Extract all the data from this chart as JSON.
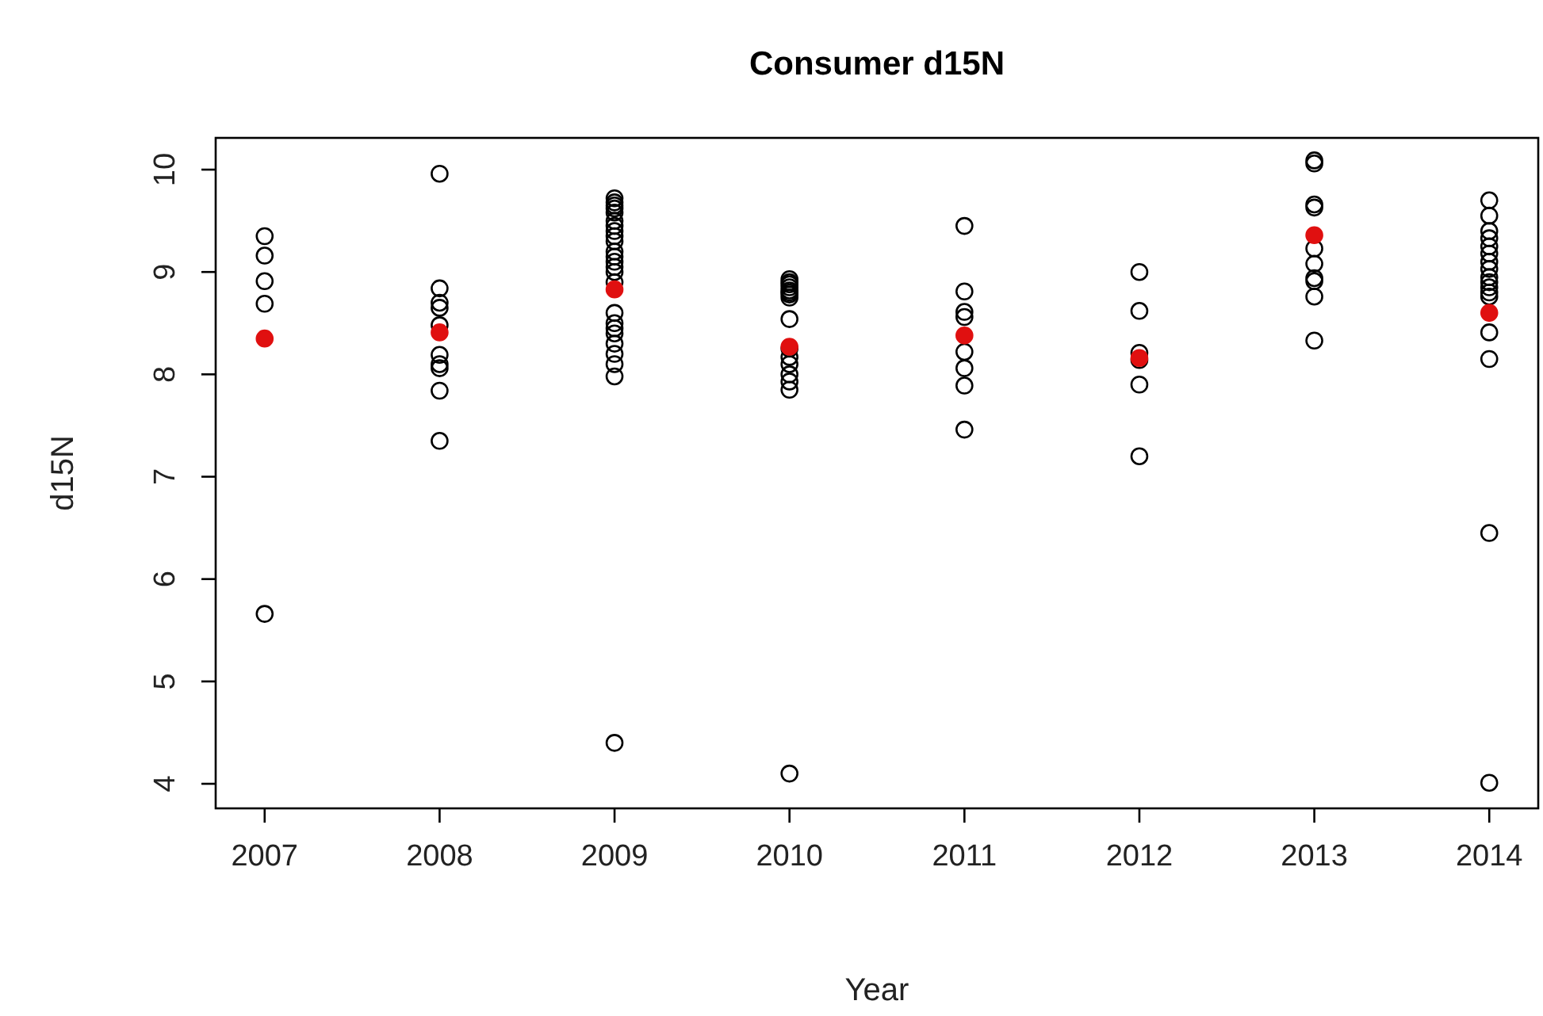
{
  "chart_data": {
    "type": "scatter",
    "title": "Consumer d15N",
    "xlabel": "Year",
    "ylabel": "d15N",
    "xlim": [
      2006.72,
      2014.28
    ],
    "xticks": [
      2007,
      2008,
      2009,
      2010,
      2011,
      2012,
      2013,
      2014
    ],
    "ylim": [
      3.76,
      10.31
    ],
    "yticks": [
      4,
      5,
      6,
      7,
      8,
      9,
      10
    ],
    "grid": false,
    "marker": "circle",
    "series": [
      {
        "color": "#000000",
        "x": [
          2007,
          2007,
          2007,
          2007,
          2007,
          2008,
          2008,
          2008,
          2008,
          2008,
          2008,
          2008,
          2008,
          2008,
          2008,
          2009,
          2009,
          2009,
          2009,
          2009,
          2009,
          2009,
          2009,
          2009,
          2009,
          2009,
          2009,
          2009,
          2009,
          2009,
          2009,
          2009,
          2009,
          2009,
          2009,
          2009,
          2009,
          2009,
          2009,
          2009,
          2010,
          2010,
          2010,
          2010,
          2010,
          2010,
          2010,
          2010,
          2010,
          2010,
          2010,
          2010,
          2010,
          2010,
          2010,
          2010,
          2011,
          2011,
          2011,
          2011,
          2011,
          2011,
          2011,
          2011,
          2012,
          2012,
          2012,
          2012,
          2012,
          2012,
          2013,
          2013,
          2013,
          2013,
          2013,
          2013,
          2013,
          2013,
          2013,
          2013,
          2014,
          2014,
          2014,
          2014,
          2014,
          2014,
          2014,
          2014,
          2014,
          2014,
          2014,
          2014,
          2014,
          2014,
          2014,
          2014,
          2014
        ],
        "values": [
          9.35,
          9.16,
          8.91,
          8.69,
          5.66,
          9.96,
          8.84,
          8.7,
          8.65,
          8.48,
          8.19,
          8.1,
          8.06,
          7.84,
          7.35,
          9.72,
          9.68,
          9.65,
          9.62,
          9.58,
          9.5,
          9.45,
          9.4,
          9.35,
          9.3,
          9.2,
          9.15,
          9.1,
          9.05,
          9.0,
          8.9,
          8.6,
          8.5,
          8.45,
          8.4,
          8.3,
          8.2,
          8.1,
          7.98,
          4.4,
          8.93,
          8.9,
          8.88,
          8.85,
          8.82,
          8.8,
          8.78,
          8.75,
          8.54,
          8.25,
          8.17,
          8.1,
          8.0,
          7.93,
          7.85,
          4.1,
          9.45,
          8.81,
          8.61,
          8.56,
          8.22,
          8.06,
          7.89,
          7.46,
          9.0,
          8.62,
          8.21,
          8.14,
          7.9,
          7.2,
          10.09,
          10.06,
          9.66,
          9.63,
          9.23,
          9.08,
          8.94,
          8.91,
          8.76,
          8.33,
          9.7,
          9.55,
          9.4,
          9.33,
          9.25,
          9.18,
          9.1,
          9.03,
          8.95,
          8.9,
          8.85,
          8.8,
          8.76,
          8.41,
          8.15,
          6.45,
          4.01
        ]
      },
      {
        "color": "#e01010",
        "x": [
          2007,
          2008,
          2009,
          2010,
          2011,
          2012,
          2013,
          2014
        ],
        "values": [
          8.35,
          8.41,
          8.83,
          8.27,
          8.38,
          8.16,
          9.36,
          8.6
        ]
      }
    ]
  }
}
